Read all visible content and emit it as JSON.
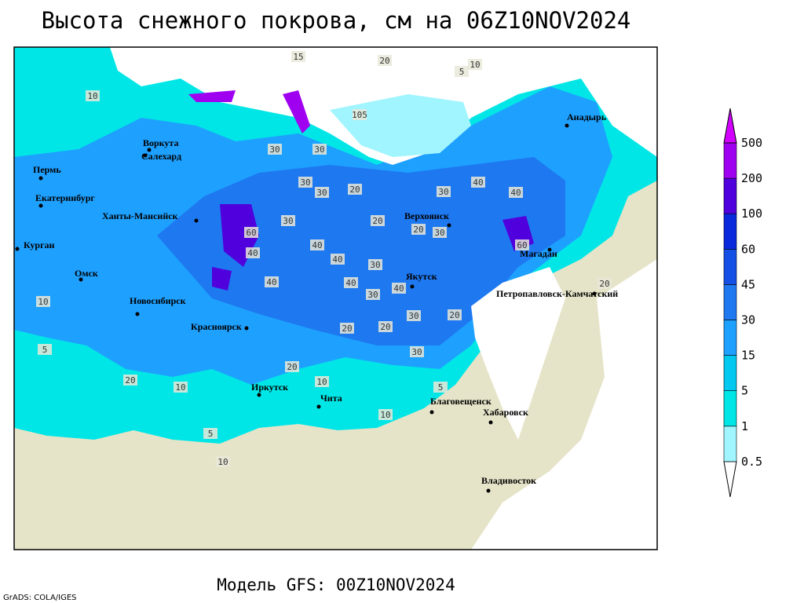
{
  "header": {
    "title": "Высота снежного покрова, см на 06Z10NOV2024"
  },
  "footer": {
    "model": "Модель GFS: 00Z10NOV2024",
    "credit": "GrADS: COLA/IGES"
  },
  "map": {
    "cities": [
      "Воркута",
      "Салехард",
      "Пермь",
      "Екатеринбург",
      "Ханты-Мансийск",
      "Курган",
      "Омск",
      "Новосибирск",
      "Красноярск",
      "Иркутск",
      "Чита",
      "Верхоянск",
      "Якутск",
      "Магадан",
      "Петропавловск-Камчатский",
      "Анадырь",
      "Благовещенск",
      "Хабаровск",
      "Владивосток"
    ],
    "contour_labels": [
      20,
      15,
      5,
      10,
      10,
      105,
      30,
      30,
      30,
      30,
      20,
      30,
      40,
      40,
      30,
      20,
      20,
      30,
      60,
      40,
      40,
      40,
      30,
      60,
      40,
      40,
      40,
      30,
      20,
      30,
      20,
      20,
      30,
      10,
      5,
      20,
      10,
      20,
      10,
      10,
      5,
      10,
      5,
      20
    ]
  },
  "legend": {
    "levels": [
      0.5,
      1,
      5,
      15,
      30,
      45,
      60,
      100,
      200,
      500
    ],
    "colors": [
      "#ffffff",
      "#a0f5ff",
      "#00e6e6",
      "#00c8f0",
      "#1ea0ff",
      "#1e78f0",
      "#1450e6",
      "#0a28dc",
      "#5000dc",
      "#a000f0",
      "#d200ff"
    ]
  }
}
